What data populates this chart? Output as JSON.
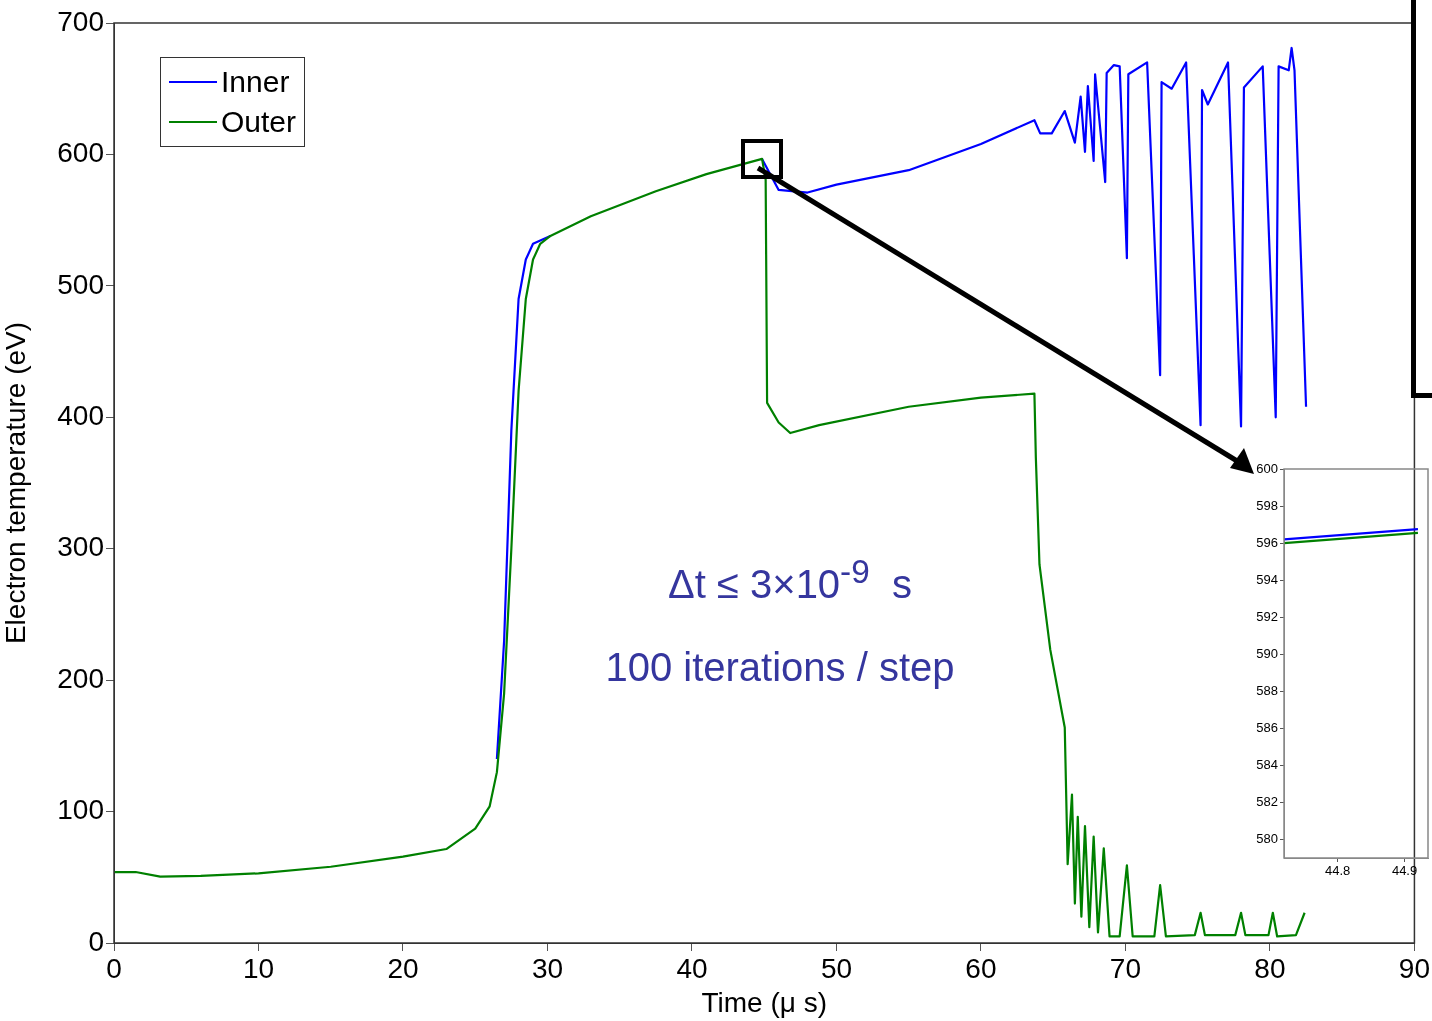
{
  "chart_data": [
    {
      "type": "line",
      "xlabel": "Time (μ s)",
      "ylabel": "Electron temperature (eV)",
      "xlim": [
        0,
        90
      ],
      "ylim": [
        0,
        700
      ],
      "xticks": [
        0,
        10,
        20,
        30,
        40,
        50,
        60,
        70,
        80,
        90
      ],
      "yticks": [
        0,
        100,
        200,
        300,
        400,
        500,
        600,
        700
      ],
      "legend": "top left",
      "annotations": [
        "Δt ≤ 3×10$^{-9}$  s",
        "100 iterations / step"
      ],
      "series": [
        {
          "name": "Inner",
          "color": "#0000ff",
          "x": [
            26.5,
            27,
            27.5,
            28,
            28.5,
            29,
            30.2,
            37.5,
            44.85,
            46,
            48,
            50,
            55,
            60,
            63.7,
            64.1,
            64.9,
            65.8,
            66.5,
            66.9,
            67.2,
            67.4,
            67.8,
            67.9,
            68.6,
            68.7,
            69.2,
            69.6,
            70.1,
            70.2,
            71.5,
            72.4,
            72.5,
            73.2,
            74.2,
            75.2,
            75.3,
            75.7,
            77.1,
            78.0,
            78.2,
            79.5,
            80.4,
            80.6,
            81.3,
            81.5,
            81.7,
            82.5
          ],
          "values": [
            140,
            230,
            390,
            490,
            520,
            532,
            538,
            null,
            596.6,
            573,
            571,
            577,
            588,
            608,
            626,
            616,
            616,
            633,
            609,
            644,
            602,
            652,
            595,
            661,
            579,
            662,
            668,
            667,
            521,
            661,
            670,
            432,
            655,
            650,
            670,
            394,
            649,
            638,
            670,
            393,
            651,
            667,
            400,
            667,
            664,
            681,
            664,
            408
          ]
        },
        {
          "name": "Outer",
          "color": "#008000",
          "x": [
            0,
            1.5,
            3.2,
            6,
            10,
            15,
            20,
            23,
            25,
            26,
            26.5,
            27,
            27.5,
            28,
            28.5,
            29,
            29.5,
            30.2,
            33,
            37.5,
            41,
            44.85,
            45.1,
            45.2,
            46,
            46.8,
            48.8,
            55,
            60,
            63.7,
            63.8,
            64.05,
            64.8,
            65.8,
            66.0,
            66.3,
            66.5,
            66.7,
            66.95,
            67.2,
            67.5,
            67.8,
            68.1,
            68.5,
            68.9,
            69.6,
            70.1,
            70.5,
            72.0,
            72.4,
            72.8,
            74.8,
            75.2,
            75.5,
            77.6,
            78.0,
            78.3,
            79.9,
            80.2,
            80.5,
            81.8,
            82.4
          ],
          "values": [
            54,
            54,
            50.5,
            51,
            53,
            58,
            65.7,
            71.5,
            87,
            104,
            130,
            190,
            300,
            420,
            490,
            520,
            532,
            538,
            553,
            572,
            585,
            596.6,
            580.7,
            411,
            396,
            388,
            394,
            408,
            415,
            418,
            369,
            288,
            223,
            164,
            60,
            113,
            30,
            96,
            20,
            89,
            12,
            81,
            8,
            72,
            5,
            5,
            59,
            5,
            5,
            44,
            5,
            6,
            23,
            6,
            6,
            23,
            6,
            6,
            23,
            5,
            6,
            23
          ]
        }
      ]
    },
    {
      "type": "line",
      "xlim": [
        44.72,
        44.935
      ],
      "ylim": [
        579,
        600
      ],
      "xticks": [
        44.8,
        44.9
      ],
      "yticks": [
        580,
        582,
        584,
        586,
        588,
        590,
        592,
        594,
        596,
        598,
        600
      ],
      "series": [
        {
          "color": "#0000ff",
          "x": [
            44.72,
            44.92
          ],
          "values": [
            596.2,
            596.75
          ]
        },
        {
          "color": "#008000",
          "x": [
            44.72,
            44.92
          ],
          "values": [
            596.0,
            596.55
          ]
        }
      ]
    }
  ]
}
